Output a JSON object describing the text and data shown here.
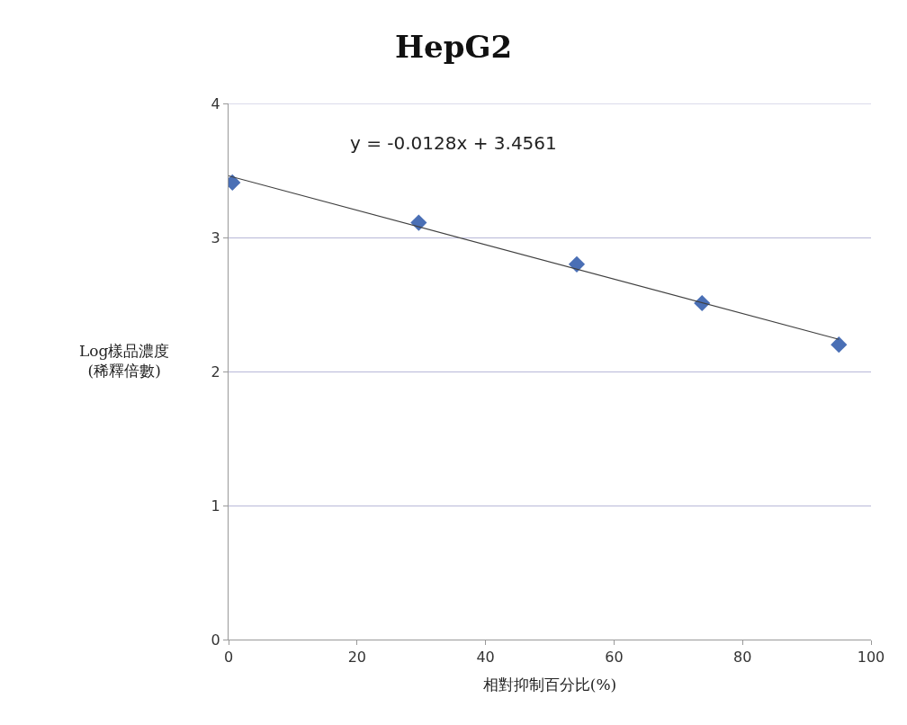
{
  "chart_data": {
    "type": "scatter",
    "title": "HepG2",
    "xlabel": "相對抑制百分比(%)",
    "ylabel": "Log樣品濃度\n(稀釋倍數)",
    "annotations": [
      "y = -0.0128x + 3.4561"
    ],
    "xlim": [
      0,
      100
    ],
    "xticks": [
      0,
      20,
      40,
      60,
      80,
      100
    ],
    "ylim": [
      0,
      4
    ],
    "yticks": [
      0,
      1,
      2,
      3,
      4
    ],
    "grid": "y",
    "marker": "diamond",
    "series": [
      {
        "color": "#4a6fb5",
        "x": [
          0.6,
          29.6,
          54.2,
          73.7,
          95
        ],
        "values": [
          3.41,
          3.11,
          2.8,
          2.51,
          2.2
        ]
      },
      {
        "type": "line",
        "color": "#404040",
        "x": [
          0,
          95
        ],
        "values": [
          3.46,
          2.24
        ],
        "marker": "none",
        "line_style": "solid"
      }
    ]
  }
}
